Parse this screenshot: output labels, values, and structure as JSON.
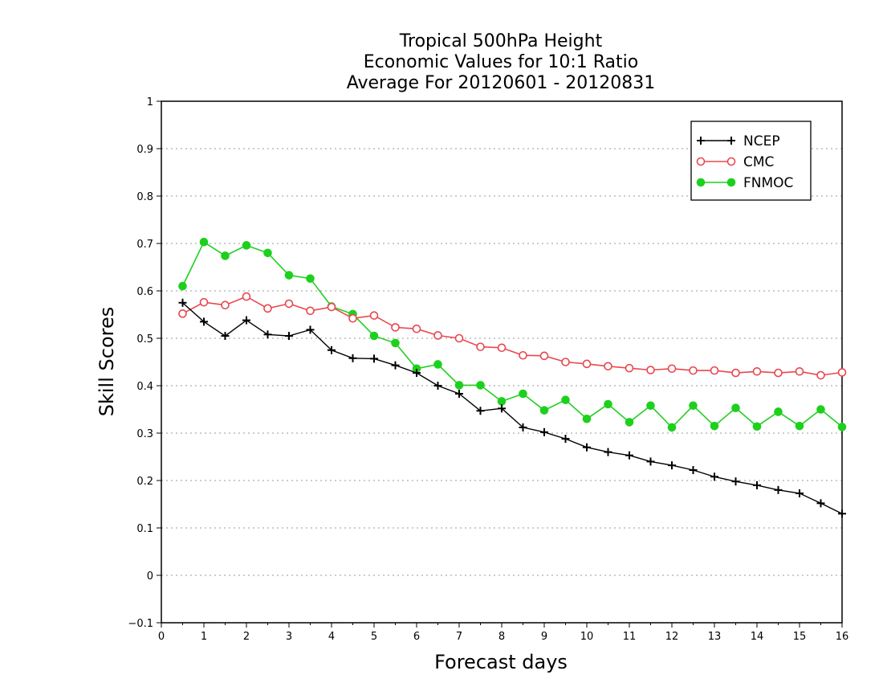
{
  "chart_data": {
    "type": "line",
    "title_lines": [
      "Tropical 500hPa Height",
      "Economic Values for 10:1 Ratio",
      "Average For 20120601 - 20120831"
    ],
    "xlabel": "Forecast days",
    "ylabel": "Skill Scores",
    "xlim": [
      0,
      16
    ],
    "ylim": [
      -0.1,
      1
    ],
    "x_ticks": [
      "0",
      "1",
      "2",
      "3",
      "4",
      "5",
      "6",
      "7",
      "8",
      "9",
      "10",
      "11",
      "12",
      "13",
      "14",
      "15",
      "16"
    ],
    "y_ticks": [
      "−0.1",
      "0",
      "0.1",
      "0.2",
      "0.3",
      "0.4",
      "0.5",
      "0.6",
      "0.7",
      "0.8",
      "0.9",
      "1"
    ],
    "grid": "horizontal dotted",
    "legend_position": "top-right",
    "x": [
      0.5,
      1,
      1.5,
      2,
      2.5,
      3,
      3.5,
      4,
      4.5,
      5,
      5.5,
      6,
      6.5,
      7,
      7.5,
      8,
      8.5,
      9,
      9.5,
      10,
      10.5,
      11,
      11.5,
      12,
      12.5,
      13,
      13.5,
      14,
      14.5,
      15,
      15.5,
      16
    ],
    "series": [
      {
        "name": "NCEP",
        "color": "#000000",
        "marker": "plus",
        "values": [
          0.575,
          0.535,
          0.505,
          0.538,
          0.508,
          0.505,
          0.518,
          0.475,
          0.458,
          0.457,
          0.443,
          0.427,
          0.4,
          0.383,
          0.347,
          0.352,
          0.312,
          0.302,
          0.288,
          0.27,
          0.26,
          0.253,
          0.24,
          0.232,
          0.222,
          0.208,
          0.198,
          0.19,
          0.18,
          0.173,
          0.152,
          0.13
        ]
      },
      {
        "name": "CMC",
        "color": "#e8484f",
        "marker": "open-circle",
        "values": [
          0.552,
          0.576,
          0.57,
          0.588,
          0.563,
          0.573,
          0.558,
          0.566,
          0.542,
          0.548,
          0.523,
          0.52,
          0.506,
          0.5,
          0.482,
          0.48,
          0.464,
          0.463,
          0.45,
          0.446,
          0.441,
          0.437,
          0.433,
          0.436,
          0.432,
          0.432,
          0.427,
          0.43,
          0.427,
          0.43,
          0.422,
          0.428
        ]
      },
      {
        "name": "FNMOC",
        "color": "#1ed01e",
        "marker": "filled-circle",
        "values": [
          0.61,
          0.703,
          0.674,
          0.696,
          0.68,
          0.633,
          0.626,
          0.567,
          0.551,
          0.505,
          0.49,
          0.436,
          0.445,
          0.401,
          0.401,
          0.367,
          0.383,
          0.348,
          0.37,
          0.33,
          0.361,
          0.323,
          0.358,
          0.312,
          0.358,
          0.315,
          0.353,
          0.314,
          0.345,
          0.315,
          0.35,
          0.313
        ]
      }
    ]
  }
}
